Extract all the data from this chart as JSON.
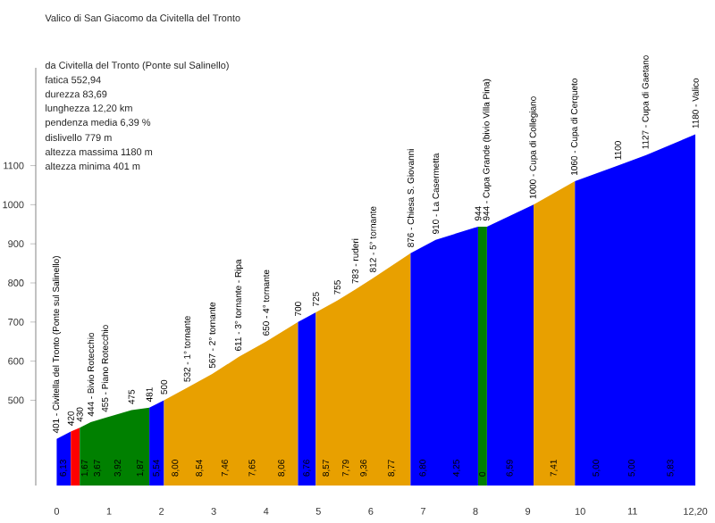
{
  "chart_data": {
    "type": "area",
    "title": "Valico di San Giacomo da Civitella del Tronto",
    "xlim": [
      -0.4,
      12.2
    ],
    "ylim": [
      282,
      1350
    ],
    "xticks": [
      0,
      1,
      2,
      3,
      4,
      5,
      6,
      7,
      8,
      9,
      10,
      11,
      {
        "value": 12.2,
        "label": "12,20"
      }
    ],
    "yticks": [
      500,
      600,
      700,
      800,
      900,
      1000,
      1100
    ],
    "series": [
      {
        "color": "#0000ff",
        "x": [
          0,
          0.27
        ],
        "values": [
          401,
          420
        ]
      },
      {
        "color": "#ff0000",
        "x": [
          0.27,
          0.44
        ],
        "values": [
          420,
          430
        ]
      },
      {
        "color": "#008000",
        "x": [
          0.44,
          0.65,
          0.92,
          1.43,
          1.77
        ],
        "values": [
          430,
          444,
          455,
          475,
          481
        ]
      },
      {
        "color": "#0000ff",
        "x": [
          1.77,
          2.05
        ],
        "values": [
          481,
          500
        ]
      },
      {
        "color": "#e8a000",
        "x": [
          2.05,
          2.49,
          2.97,
          3.48,
          4.0,
          4.61
        ],
        "values": [
          500,
          532,
          567,
          611,
          650,
          700
        ]
      },
      {
        "color": "#0000ff",
        "x": [
          4.61,
          4.95
        ],
        "values": [
          700,
          725
        ]
      },
      {
        "color": "#e8a000",
        "x": [
          4.95,
          5.36,
          5.7,
          6.04,
          6.76
        ],
        "values": [
          725,
          755,
          783,
          812,
          876
        ]
      },
      {
        "color": "#0000ff",
        "x": [
          6.76,
          7.24,
          8.05
        ],
        "values": [
          876,
          910,
          944
        ]
      },
      {
        "color": "#008000",
        "x": [
          8.05,
          8.22
        ],
        "values": [
          944,
          944
        ]
      },
      {
        "color": "#0000ff",
        "x": [
          8.22,
          9.11
        ],
        "values": [
          944,
          1000
        ]
      },
      {
        "color": "#e8a000",
        "x": [
          9.11,
          9.9
        ],
        "values": [
          1000,
          1060
        ]
      },
      {
        "color": "#0000ff",
        "x": [
          9.9,
          10.72,
          11.26,
          12.2
        ],
        "values": [
          1060,
          1100,
          1127,
          1180
        ]
      }
    ],
    "annotations": [
      "da Civitella del Tronto (Ponte sul Salinello)",
      "fatica 552,94",
      "durezza 83,69",
      "lunghezza 12,20 km",
      "pendenza media 6,39 %",
      "dislivello 779 m",
      "altezza massima 1180 m",
      "altezza minima 401 m",
      {
        "text": "401 - Civitella del Tronto (Ponte sul Salinello)",
        "x": 0,
        "y": 401
      },
      {
        "text": "420",
        "x": 0.27,
        "y": 420
      },
      {
        "text": "430",
        "x": 0.44,
        "y": 430
      },
      {
        "text": "444 - Bivio Rotecchio",
        "x": 0.65,
        "y": 444
      },
      {
        "text": "455 - Piano Rotecchio",
        "x": 0.92,
        "y": 455
      },
      {
        "text": "475",
        "x": 1.43,
        "y": 475
      },
      {
        "text": "481",
        "x": 1.77,
        "y": 481
      },
      {
        "text": "500",
        "x": 2.05,
        "y": 500
      },
      {
        "text": "532 - 1° tornante",
        "x": 2.49,
        "y": 532
      },
      {
        "text": "567 - 2° tornante",
        "x": 2.97,
        "y": 567
      },
      {
        "text": "611 - 3° tornante - Ripa",
        "x": 3.48,
        "y": 611
      },
      {
        "text": "650 - 4° tornante",
        "x": 4.0,
        "y": 650
      },
      {
        "text": "700",
        "x": 4.61,
        "y": 700
      },
      {
        "text": "725",
        "x": 4.95,
        "y": 725
      },
      {
        "text": "755",
        "x": 5.36,
        "y": 755
      },
      {
        "text": "783 - ruderi",
        "x": 5.7,
        "y": 783
      },
      {
        "text": "812 - 5° tornante",
        "x": 6.04,
        "y": 812
      },
      {
        "text": "876 - Chiesa S. Giovanni",
        "x": 6.76,
        "y": 876
      },
      {
        "text": "910 - La Casermetta",
        "x": 7.24,
        "y": 910
      },
      {
        "text": "944",
        "x": 8.05,
        "y": 944
      },
      {
        "text": "944 - Cupa Grande (bivio Villa Pina)",
        "x": 8.22,
        "y": 944
      },
      {
        "text": "1000 - Cupa di Collegiano",
        "x": 9.11,
        "y": 1000
      },
      {
        "text": "1060 - Cupa di Cerqueto",
        "x": 9.9,
        "y": 1060
      },
      {
        "text": "1100",
        "x": 10.72,
        "y": 1100
      },
      {
        "text": "1127 - Cupa di Gaetano",
        "x": 11.26,
        "y": 1127
      },
      {
        "text": "1180 - Valico",
        "x": 12.2,
        "y": 1180
      },
      {
        "text": "6,13",
        "x": 0.13,
        "y": 290
      },
      {
        "text": "1,67",
        "x": 0.54,
        "y": 290
      },
      {
        "text": "3,67",
        "x": 0.78,
        "y": 290
      },
      {
        "text": "3,92",
        "x": 1.17,
        "y": 290
      },
      {
        "text": "1,87",
        "x": 1.6,
        "y": 290
      },
      {
        "text": "5,54",
        "x": 1.91,
        "y": 290
      },
      {
        "text": "8,00",
        "x": 2.27,
        "y": 290
      },
      {
        "text": "8,54",
        "x": 2.73,
        "y": 290
      },
      {
        "text": "7,46",
        "x": 3.22,
        "y": 290
      },
      {
        "text": "7,65",
        "x": 3.74,
        "y": 290
      },
      {
        "text": "8,06",
        "x": 4.3,
        "y": 290
      },
      {
        "text": "6,76",
        "x": 4.78,
        "y": 290
      },
      {
        "text": "8,57",
        "x": 5.15,
        "y": 290
      },
      {
        "text": "7,79",
        "x": 5.53,
        "y": 290
      },
      {
        "text": "9,36",
        "x": 5.87,
        "y": 290
      },
      {
        "text": "8,77",
        "x": 6.4,
        "y": 290
      },
      {
        "text": "6,80",
        "x": 7.0,
        "y": 290
      },
      {
        "text": "4,25",
        "x": 7.64,
        "y": 290
      },
      {
        "text": "0",
        "x": 8.13,
        "y": 290
      },
      {
        "text": "6,59",
        "x": 8.66,
        "y": 290
      },
      {
        "text": "7,41",
        "x": 9.5,
        "y": 290
      },
      {
        "text": "5,00",
        "x": 10.31,
        "y": 290
      },
      {
        "text": "5,00",
        "x": 10.99,
        "y": 290
      },
      {
        "text": "5,83",
        "x": 11.73,
        "y": 290
      }
    ]
  }
}
